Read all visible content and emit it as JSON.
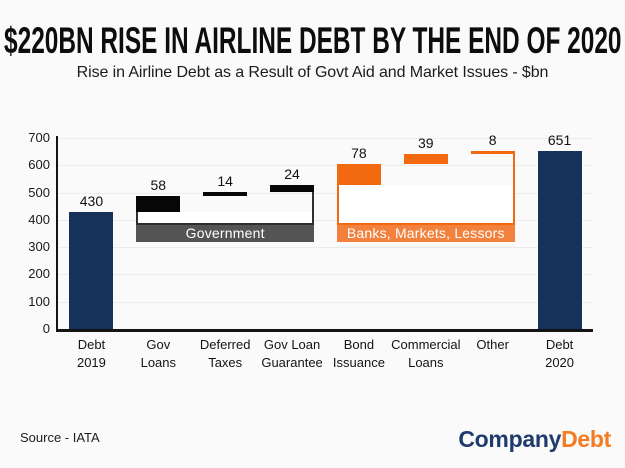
{
  "colors": {
    "navy": "#16325B",
    "black": "#070707",
    "orange": "#F2690F",
    "band_gray": "#545454",
    "band_orange": "#F2813D",
    "line_dark": "#2F2F2F",
    "line_orange": "#F2690F",
    "logo_navy": "#1E3A6E",
    "logo_orange": "#F47B20"
  },
  "footer": {
    "source": "Source - IATA",
    "logo": {
      "part1": "Company",
      "part2": "Debt"
    }
  },
  "chart_data": {
    "type": "waterfall",
    "title": "$220BN RISE IN AIRLINE DEBT BY THE END OF 2020",
    "subtitle": "Rise in Airline Debt as a Result of Govt Aid and Market Issues - $bn",
    "ylim": [
      0,
      700
    ],
    "ytick_step": 100,
    "grid": true,
    "legend_position": "none",
    "bars": [
      {
        "label_lines": [
          "Debt",
          "2019"
        ],
        "start": 0,
        "end": 430,
        "value": 430,
        "value_label": "430",
        "color": "navy"
      },
      {
        "label_lines": [
          "Gov",
          "Loans"
        ],
        "start": 430,
        "end": 488,
        "value": 58,
        "value_label": "58",
        "color": "black"
      },
      {
        "label_lines": [
          "Deferred",
          "Taxes"
        ],
        "start": 488,
        "end": 502,
        "value": 14,
        "value_label": "14",
        "color": "black"
      },
      {
        "label_lines": [
          "Gov Loan",
          "Guarantee"
        ],
        "start": 502,
        "end": 526,
        "value": 24,
        "value_label": "24",
        "color": "black"
      },
      {
        "label_lines": [
          "Bond",
          "Issuance"
        ],
        "start": 526,
        "end": 604,
        "value": 78,
        "value_label": "78",
        "color": "orange"
      },
      {
        "label_lines": [
          "Commercial",
          "Loans"
        ],
        "start": 604,
        "end": 643,
        "value": 39,
        "value_label": "39",
        "color": "orange"
      },
      {
        "label_lines": [
          "Other"
        ],
        "start": 643,
        "end": 651,
        "value": 8,
        "value_label": "8",
        "color": "orange"
      },
      {
        "label_lines": [
          "Debt",
          "2020"
        ],
        "start": 0,
        "end": 651,
        "value": 651,
        "value_label": "651",
        "color": "navy"
      }
    ],
    "groups": [
      {
        "label": "Government",
        "from_bar": 1,
        "to_bar": 3,
        "band_color_key": "band_gray",
        "line_color_key": "line_dark",
        "left_top_value": 430,
        "right_top_value": 502,
        "band_top_value": 385,
        "band_bottom_value": 319
      },
      {
        "label": "Banks, Markets, Lessors",
        "from_bar": 4,
        "to_bar": 6,
        "band_color_key": "band_orange",
        "line_color_key": "line_orange",
        "left_top_value": 526,
        "right_top_value": 643,
        "band_top_value": 385,
        "band_bottom_value": 319
      }
    ]
  }
}
